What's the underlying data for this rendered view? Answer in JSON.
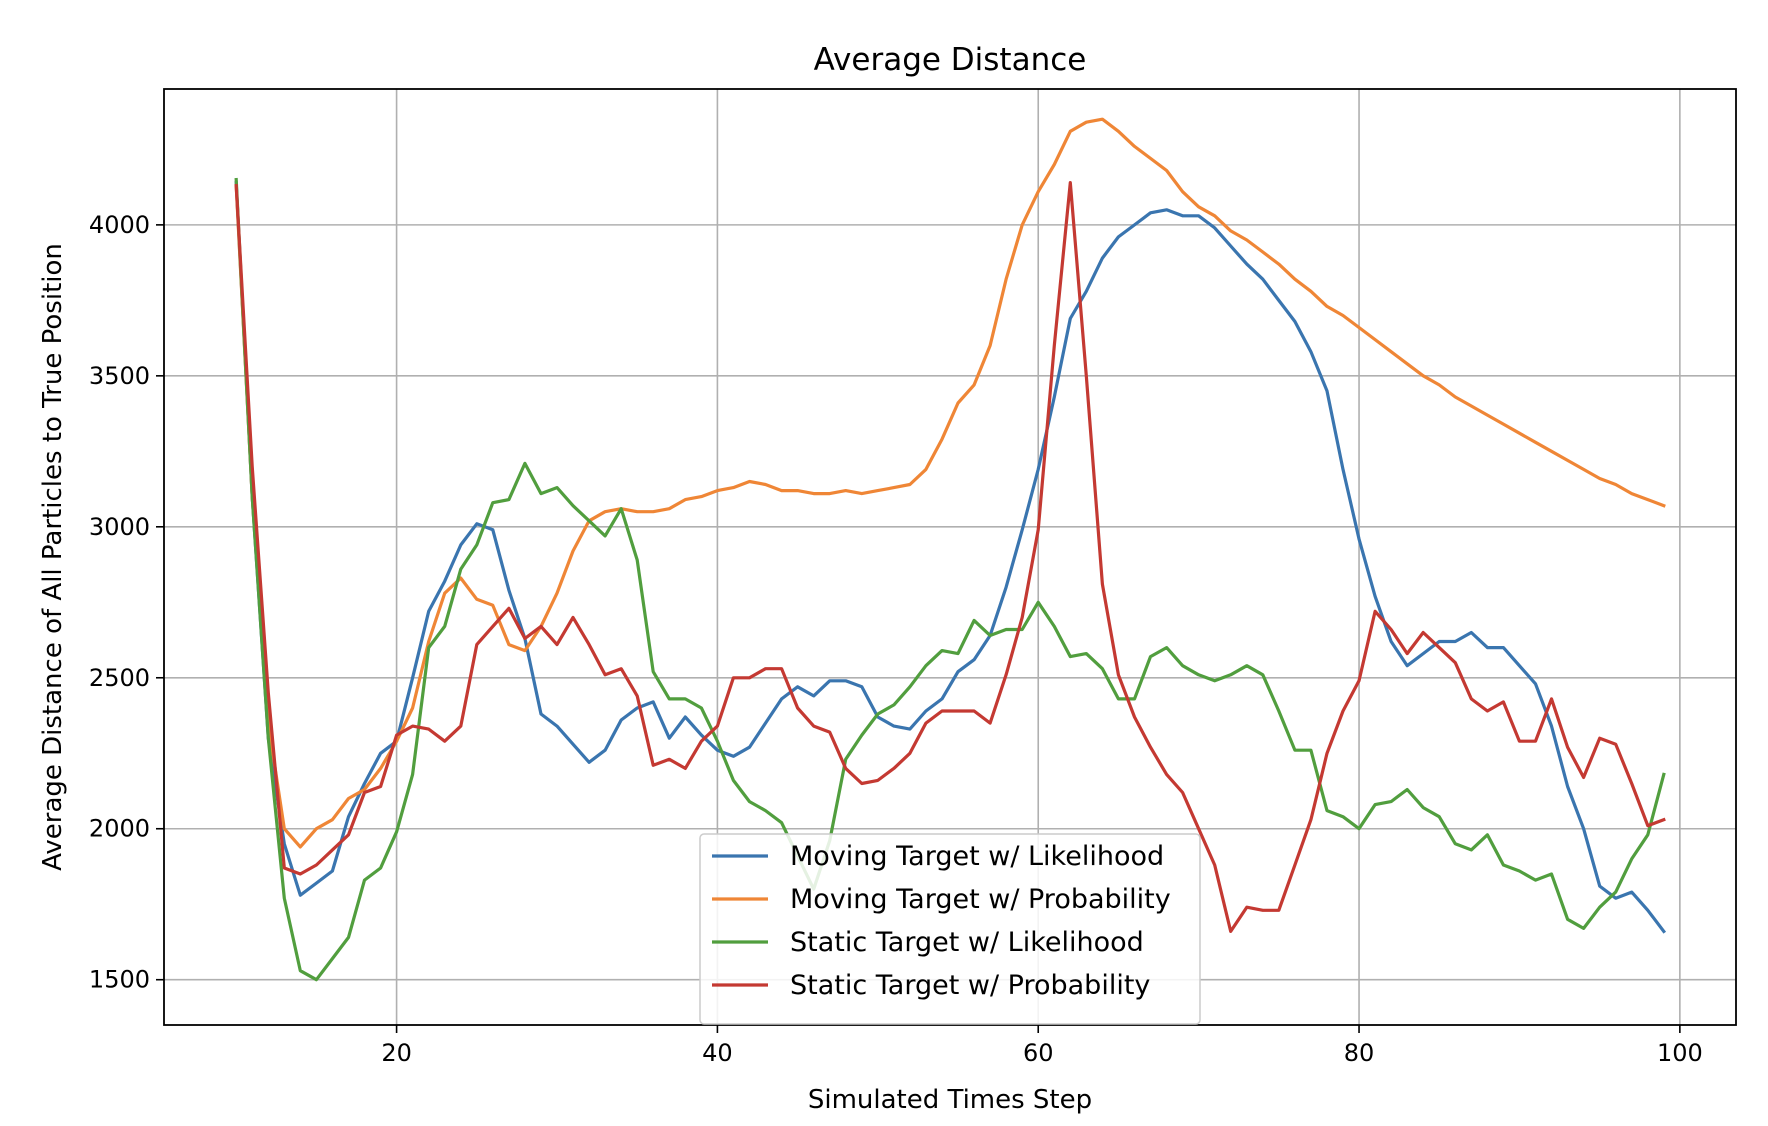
{
  "chart_data": {
    "type": "line",
    "title": "Average Distance",
    "xlabel": "Simulated Times Step",
    "ylabel": "Average Distance of All Particles to True Position",
    "xlim": [
      5.5,
      103.5
    ],
    "ylim": [
      1350,
      4450
    ],
    "xticks": [
      20,
      40,
      60,
      80,
      100
    ],
    "yticks": [
      1500,
      2000,
      2500,
      3000,
      3500,
      4000
    ],
    "grid": true,
    "legend_position": "lower center",
    "x_start": 10,
    "series": [
      {
        "name": "Moving Target w/ Likelihood",
        "color": "#3a75af",
        "values": [
          4140,
          3100,
          2300,
          1950,
          1780,
          1820,
          1860,
          2040,
          2150,
          2250,
          2290,
          2500,
          2720,
          2820,
          2940,
          3010,
          2990,
          2790,
          2630,
          2380,
          2340,
          2280,
          2220,
          2260,
          2360,
          2400,
          2420,
          2300,
          2370,
          2310,
          2260,
          2240,
          2270,
          2350,
          2430,
          2470,
          2440,
          2490,
          2490,
          2470,
          2370,
          2340,
          2330,
          2390,
          2430,
          2520,
          2560,
          2640,
          2800,
          2990,
          3190,
          3430,
          3690,
          3780,
          3890,
          3960,
          4000,
          4040,
          4050,
          4030,
          4030,
          3990,
          3930,
          3870,
          3820,
          3750,
          3680,
          3580,
          3450,
          3190,
          2960,
          2770,
          2620,
          2540,
          2580,
          2620,
          2620,
          2650,
          2600,
          2600,
          2540,
          2480,
          2340,
          2140,
          2000,
          1810,
          1770,
          1790,
          1730,
          1660
        ]
      },
      {
        "name": "Moving Target w/ Probability",
        "color": "#ef8636",
        "values": [
          4130,
          3100,
          2350,
          2000,
          1940,
          2000,
          2030,
          2100,
          2130,
          2200,
          2290,
          2400,
          2620,
          2780,
          2830,
          2760,
          2740,
          2610,
          2590,
          2670,
          2780,
          2920,
          3020,
          3050,
          3060,
          3050,
          3050,
          3060,
          3090,
          3100,
          3120,
          3130,
          3150,
          3140,
          3120,
          3120,
          3110,
          3110,
          3120,
          3110,
          3120,
          3130,
          3140,
          3190,
          3290,
          3410,
          3470,
          3600,
          3820,
          4000,
          4110,
          4200,
          4310,
          4340,
          4350,
          4310,
          4260,
          4220,
          4180,
          4110,
          4060,
          4030,
          3980,
          3950,
          3910,
          3870,
          3820,
          3780,
          3730,
          3700,
          3660,
          3620,
          3580,
          3540,
          3500,
          3470,
          3430,
          3400,
          3370,
          3340,
          3310,
          3280,
          3250,
          3220,
          3190,
          3160,
          3140,
          3110,
          3090,
          3070
        ]
      },
      {
        "name": "Static Target w/ Likelihood",
        "color": "#519e3e",
        "values": [
          4150,
          3100,
          2300,
          1770,
          1530,
          1500,
          1570,
          1640,
          1830,
          1870,
          1990,
          2180,
          2600,
          2670,
          2860,
          2940,
          3080,
          3090,
          3210,
          3110,
          3130,
          3070,
          3020,
          2970,
          3060,
          2890,
          2520,
          2430,
          2430,
          2400,
          2290,
          2160,
          2090,
          2060,
          2020,
          1910,
          1800,
          1960,
          2230,
          2310,
          2380,
          2410,
          2470,
          2540,
          2590,
          2580,
          2690,
          2640,
          2660,
          2660,
          2750,
          2670,
          2570,
          2580,
          2530,
          2430,
          2430,
          2570,
          2600,
          2540,
          2510,
          2490,
          2510,
          2540,
          2510,
          2390,
          2260,
          2260,
          2060,
          2040,
          2000,
          2080,
          2090,
          2130,
          2070,
          2040,
          1950,
          1930,
          1980,
          1880,
          1860,
          1830,
          1850,
          1700,
          1670,
          1740,
          1790,
          1900,
          1980,
          2180
        ]
      },
      {
        "name": "Static Target w/ Probability",
        "color": "#c43932",
        "values": [
          4130,
          3200,
          2450,
          1870,
          1850,
          1880,
          1930,
          1980,
          2120,
          2140,
          2310,
          2340,
          2330,
          2290,
          2340,
          2610,
          2670,
          2730,
          2630,
          2670,
          2610,
          2700,
          2610,
          2510,
          2530,
          2440,
          2210,
          2230,
          2200,
          2290,
          2340,
          2500,
          2500,
          2530,
          2530,
          2400,
          2340,
          2320,
          2200,
          2150,
          2160,
          2200,
          2250,
          2350,
          2390,
          2390,
          2390,
          2350,
          2510,
          2700,
          2990,
          3600,
          4140,
          3500,
          2810,
          2510,
          2370,
          2270,
          2180,
          2120,
          2000,
          1880,
          1660,
          1740,
          1730,
          1730,
          1880,
          2030,
          2250,
          2390,
          2490,
          2720,
          2660,
          2580,
          2650,
          2600,
          2550,
          2430,
          2390,
          2420,
          2290,
          2290,
          2430,
          2270,
          2170,
          2300,
          2280,
          2150,
          2010,
          2030
        ]
      }
    ]
  }
}
